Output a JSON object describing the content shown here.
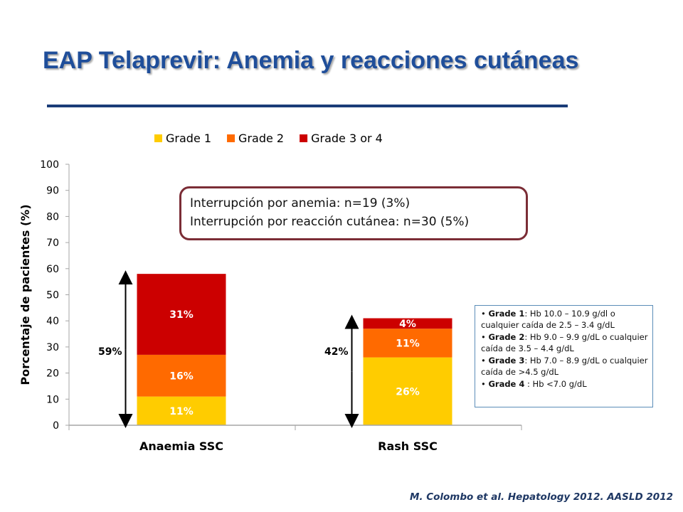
{
  "slide": {
    "title": "EAP Telaprevir:  Anemia y reacciones cutáneas",
    "citation": "M. Colombo et al. Hepatology 2012. AASLD 2012"
  },
  "callout": {
    "line1": "Interrupción por anemia: n=19 (3%)",
    "line2": "Interrupción por reacción cutánea: n=30 (5%)"
  },
  "grades": [
    {
      "label": "Grade 1",
      "text": ":  Hb 10.0 – 10.9 g/dl o cualquier caída de 2.5 – 3.4 g/dL"
    },
    {
      "label": "Grade 2",
      "text": ":  Hb 9.0 – 9.9 g/dL o cualquier caída de 3.5 – 4.4 g/dL"
    },
    {
      "label": "Grade 3",
      "text": ": Hb 7.0 – 8.9 g/dL  o cualquier caída de >4.5 g/dL"
    },
    {
      "label": "Grade 4",
      "text": " : Hb <7.0 g/dL"
    }
  ],
  "chart_data": {
    "type": "bar",
    "stacked": true,
    "categories": [
      "Anaemia SSC",
      "Rash SSC"
    ],
    "series": [
      {
        "name": "Grade 1",
        "values": [
          11,
          26
        ],
        "labels": [
          "11%",
          "26%"
        ],
        "color": "#FFCC00"
      },
      {
        "name": "Grade 2",
        "values": [
          16,
          11
        ],
        "labels": [
          "16%",
          "11%"
        ],
        "color": "#FF6A00"
      },
      {
        "name": "Grade 3 or 4",
        "values": [
          31,
          4
        ],
        "labels": [
          "31%",
          "4%"
        ],
        "color": "#CC0000"
      }
    ],
    "totals": [
      "59%",
      "42%"
    ],
    "ylabel": "Porcentaje de pacientes (%)",
    "ylim": [
      0,
      100
    ],
    "yticks": [
      0,
      10,
      20,
      30,
      40,
      50,
      60,
      70,
      80,
      90,
      100
    ],
    "legend_position": "top"
  }
}
